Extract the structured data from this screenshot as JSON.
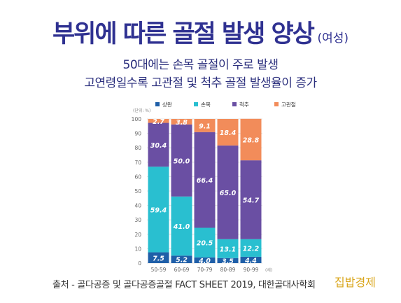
{
  "title": "부위에 따른 골절 발생 양상",
  "title_suffix": "(여성)",
  "subtitle_1": "50대에는 손목 골절이 주로 발생",
  "subtitle_2": "고연령일수록 고관절 및 척추 골절 발생율이 증가",
  "source": "출처 - 골다공증 및 골다공증골절 FACT SHEET 2019, 대한골대사학회",
  "watermark": "집밥경제",
  "chart_data": {
    "type": "bar",
    "stacked": true,
    "ylabel": "(단위: %)",
    "xunit": "(세)",
    "categories": [
      "50-59",
      "60-69",
      "70-79",
      "80-89",
      "90-99"
    ],
    "ylim": [
      0,
      100
    ],
    "yticks": [
      0,
      10,
      20,
      30,
      40,
      50,
      60,
      70,
      80,
      90,
      100
    ],
    "grid": true,
    "legend_position": "top",
    "series": [
      {
        "name": "상완",
        "color": "#1f5fa8",
        "values": [
          7.5,
          5.2,
          4.0,
          3.5,
          4.4
        ]
      },
      {
        "name": "손목",
        "color": "#29bfd0",
        "values": [
          59.4,
          41.0,
          20.5,
          13.1,
          12.2
        ]
      },
      {
        "name": "척추",
        "color": "#6a4fa3",
        "values": [
          30.4,
          50.0,
          66.4,
          65.0,
          54.7
        ]
      },
      {
        "name": "고관절",
        "color": "#f28c5a",
        "values": [
          2.7,
          3.8,
          9.1,
          18.4,
          28.8
        ]
      }
    ]
  }
}
